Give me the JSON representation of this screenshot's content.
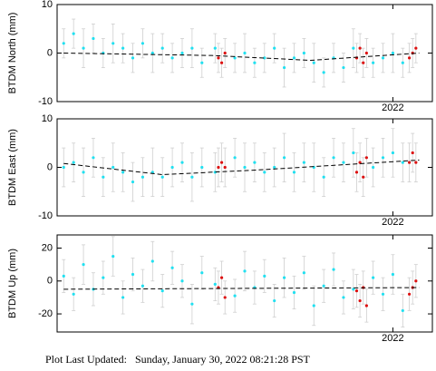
{
  "chart_data": [
    {
      "type": "scatter",
      "y_label": "BTDM North (mm)",
      "ylim": [
        -10,
        10
      ],
      "yticks": [
        -10,
        0,
        10
      ],
      "xlim": [
        2020.98,
        2022.12
      ],
      "xticks": [
        2022
      ],
      "series": [
        {
          "color": "#22e0f0",
          "x": [
            2021.0,
            2021.03,
            2021.06,
            2021.09,
            2021.12,
            2021.15,
            2021.18,
            2021.21,
            2021.24,
            2021.27,
            2021.3,
            2021.33,
            2021.36,
            2021.39,
            2021.42,
            2021.46,
            2021.52,
            2021.55,
            2021.58,
            2021.61,
            2021.64,
            2021.67,
            2021.7,
            2021.73,
            2021.76,
            2021.79,
            2021.82,
            2021.85,
            2021.88,
            2021.94,
            2021.97,
            2022.0,
            2022.03
          ],
          "values": [
            2,
            4,
            1,
            3,
            0,
            2,
            1,
            -1,
            2,
            0,
            1,
            -1,
            0,
            1,
            -2,
            1,
            -1,
            0,
            -2,
            -1,
            1,
            -3,
            -1,
            0,
            -2,
            -4,
            -1,
            -3,
            1,
            -2,
            -1,
            0,
            -2
          ],
          "errors": [
            3,
            3,
            4,
            3,
            3,
            4,
            3,
            3,
            3,
            4,
            3,
            3,
            3,
            4,
            3,
            3,
            3,
            4,
            3,
            3,
            3,
            4,
            3,
            3,
            4,
            3,
            3,
            3,
            4,
            3,
            3,
            4,
            3
          ]
        },
        {
          "color": "#dd1111",
          "x": [
            2021.47,
            2021.48,
            2021.49,
            2021.89,
            2021.9,
            2021.91,
            2021.92,
            2022.05,
            2022.06,
            2022.07
          ],
          "values": [
            -1,
            -2,
            0,
            -1,
            1,
            -2,
            0,
            -1,
            0,
            1
          ],
          "errors": [
            3,
            3,
            3,
            3,
            3,
            3,
            3,
            3,
            3,
            3
          ]
        }
      ],
      "trend": {
        "x": [
          2021.0,
          2021.45,
          2021.75,
          2022.08
        ],
        "values": [
          0,
          -0.5,
          -1.5,
          0
        ]
      }
    },
    {
      "type": "scatter",
      "y_label": "BTDM East (mm)",
      "ylim": [
        -10,
        10
      ],
      "yticks": [
        -10,
        0,
        10
      ],
      "xlim": [
        2020.98,
        2022.12
      ],
      "xticks": [
        2022
      ],
      "series": [
        {
          "color": "#22e0f0",
          "x": [
            2021.0,
            2021.03,
            2021.06,
            2021.09,
            2021.12,
            2021.15,
            2021.18,
            2021.21,
            2021.24,
            2021.27,
            2021.3,
            2021.33,
            2021.36,
            2021.39,
            2021.42,
            2021.46,
            2021.52,
            2021.55,
            2021.58,
            2021.61,
            2021.64,
            2021.67,
            2021.7,
            2021.73,
            2021.76,
            2021.79,
            2021.82,
            2021.85,
            2021.88,
            2021.94,
            2021.97,
            2022.0,
            2022.03
          ],
          "values": [
            0,
            1,
            -1,
            2,
            -2,
            0,
            -1,
            -3,
            -2,
            -1,
            -2,
            0,
            1,
            -2,
            0,
            -1,
            2,
            0,
            1,
            -1,
            0,
            2,
            -1,
            1,
            0,
            -2,
            2,
            1,
            3,
            0,
            2,
            3,
            1
          ],
          "errors": [
            4,
            4,
            5,
            4,
            4,
            5,
            4,
            4,
            4,
            5,
            4,
            4,
            4,
            5,
            4,
            4,
            4,
            5,
            4,
            4,
            4,
            5,
            4,
            4,
            5,
            4,
            4,
            4,
            5,
            4,
            4,
            5,
            4
          ]
        },
        {
          "color": "#dd1111",
          "x": [
            2021.47,
            2021.48,
            2021.49,
            2021.89,
            2021.9,
            2021.91,
            2021.92,
            2022.05,
            2022.06,
            2022.07
          ],
          "values": [
            0,
            1,
            0,
            -1,
            1,
            -2,
            2,
            1,
            3,
            1
          ],
          "errors": [
            4,
            4,
            4,
            4,
            4,
            4,
            4,
            4,
            4,
            4
          ]
        }
      ],
      "trend": {
        "x": [
          2021.0,
          2021.3,
          2021.6,
          2022.08
        ],
        "values": [
          0.8,
          -1.5,
          -0.5,
          1.5
        ]
      }
    },
    {
      "type": "scatter",
      "y_label": "BTDM Up (mm)",
      "ylim": [
        -31,
        28
      ],
      "yticks": [
        -20,
        0,
        20
      ],
      "xlim": [
        2020.98,
        2022.12
      ],
      "xticks": [
        2022
      ],
      "series": [
        {
          "color": "#22e0f0",
          "x": [
            2021.0,
            2021.03,
            2021.06,
            2021.09,
            2021.12,
            2021.15,
            2021.18,
            2021.21,
            2021.24,
            2021.27,
            2021.3,
            2021.33,
            2021.36,
            2021.39,
            2021.42,
            2021.46,
            2021.52,
            2021.55,
            2021.58,
            2021.61,
            2021.64,
            2021.67,
            2021.7,
            2021.73,
            2021.76,
            2021.79,
            2021.82,
            2021.85,
            2021.88,
            2021.94,
            2021.97,
            2022.0,
            2022.03
          ],
          "values": [
            3,
            -8,
            10,
            -5,
            2,
            15,
            -10,
            4,
            -3,
            12,
            -6,
            8,
            0,
            -14,
            5,
            -2,
            -9,
            6,
            -4,
            3,
            -12,
            2,
            -7,
            5,
            -15,
            -3,
            7,
            -10,
            -5,
            2,
            -8,
            4,
            -18
          ],
          "errors": [
            10,
            10,
            12,
            10,
            10,
            12,
            10,
            10,
            10,
            12,
            10,
            10,
            10,
            12,
            10,
            10,
            10,
            12,
            10,
            10,
            10,
            12,
            10,
            10,
            12,
            10,
            10,
            10,
            12,
            10,
            10,
            12,
            10
          ]
        },
        {
          "color": "#dd1111",
          "x": [
            2021.47,
            2021.48,
            2021.49,
            2021.89,
            2021.9,
            2021.91,
            2021.92,
            2022.05,
            2022.06,
            2022.07
          ],
          "values": [
            -4,
            2,
            -10,
            -6,
            -12,
            -4,
            -15,
            -8,
            -4,
            0
          ],
          "errors": [
            10,
            10,
            10,
            10,
            10,
            10,
            10,
            10,
            10,
            10
          ]
        }
      ],
      "trend": {
        "x": [
          2021.0,
          2022.08
        ],
        "values": [
          -5,
          -4
        ]
      }
    }
  ],
  "footer": "Plot Last Updated:   Sunday, January 30, 2022 08:21:28 PST"
}
